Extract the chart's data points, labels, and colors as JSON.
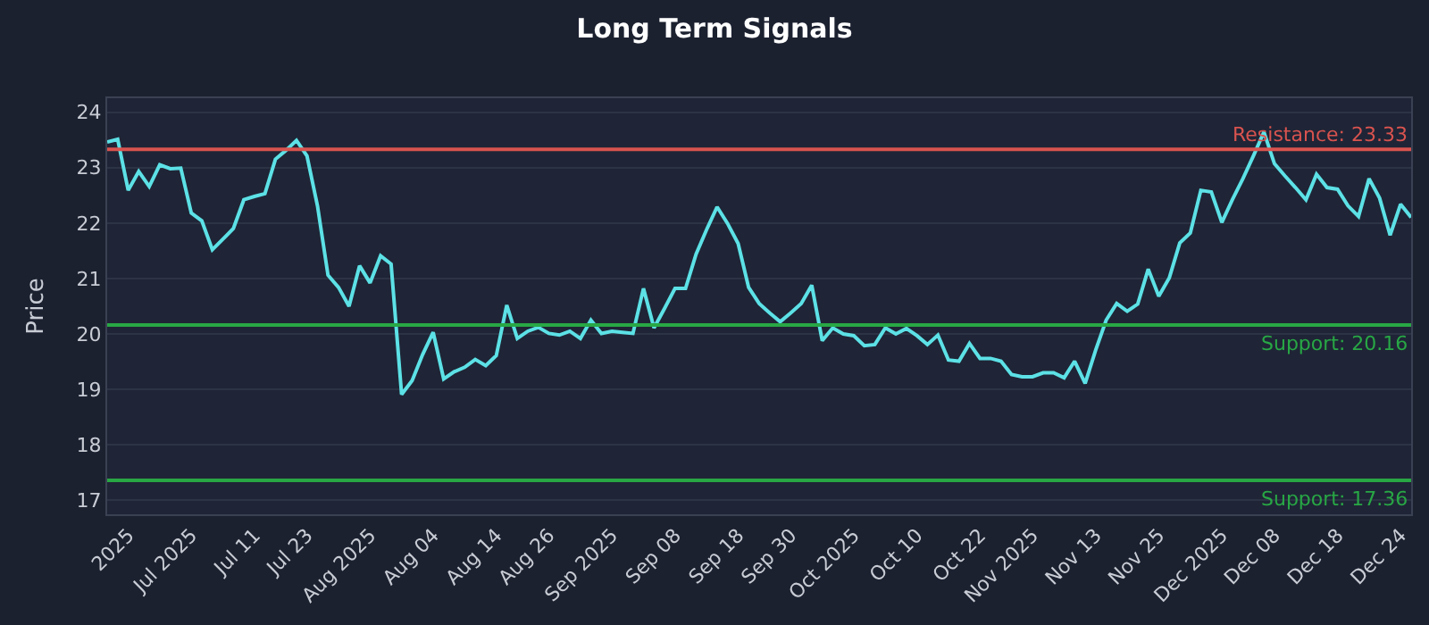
{
  "chart_data": {
    "type": "line",
    "title": "Long Term Signals",
    "ylabel": "Price",
    "categories": [
      null,
      null,
      "2025",
      null,
      null,
      null,
      null,
      null,
      "Jul 2025",
      null,
      null,
      null,
      null,
      null,
      "Jul 11",
      null,
      null,
      null,
      null,
      "Jul 23",
      null,
      null,
      null,
      null,
      null,
      "Aug 2025",
      null,
      null,
      null,
      null,
      null,
      "Aug 04",
      null,
      null,
      null,
      null,
      null,
      "Aug 14",
      null,
      null,
      null,
      null,
      "Aug 26",
      null,
      null,
      null,
      null,
      null,
      "Sep 2025",
      null,
      null,
      null,
      null,
      null,
      "Sep 08",
      null,
      null,
      null,
      null,
      null,
      "Sep 18",
      null,
      null,
      null,
      null,
      "Sep 30",
      null,
      null,
      null,
      null,
      null,
      "Oct 2025",
      null,
      null,
      null,
      null,
      null,
      "Oct 10",
      null,
      null,
      null,
      null,
      null,
      "Oct 22",
      null,
      null,
      null,
      null,
      "Nov 2025",
      null,
      null,
      null,
      null,
      null,
      "Nov 13",
      null,
      null,
      null,
      null,
      null,
      "Nov 25",
      null,
      null,
      null,
      null,
      null,
      "Dec 2025",
      null,
      null,
      null,
      null,
      "Dec 08",
      null,
      null,
      null,
      null,
      null,
      "Dec 18",
      null,
      null,
      null,
      null,
      null,
      "Dec 24",
      null
    ],
    "series": [
      {
        "color": "#5ce1e6",
        "values": [
          23.46,
          23.51,
          22.59,
          22.93,
          22.66,
          23.05,
          22.98,
          22.99,
          22.18,
          22.04,
          21.52,
          21.71,
          21.9,
          22.42,
          22.48,
          22.53,
          23.15,
          23.31,
          23.49,
          23.21,
          22.31,
          21.06,
          20.84,
          20.5,
          21.23,
          20.92,
          21.41,
          21.26,
          18.91,
          19.16,
          19.63,
          20.03,
          19.19,
          19.32,
          19.4,
          19.54,
          19.43,
          19.61,
          20.52,
          19.92,
          20.05,
          20.12,
          20.01,
          19.98,
          20.05,
          19.92,
          20.25,
          20.01,
          20.05,
          20.03,
          20.01,
          20.82,
          20.11,
          20.46,
          20.82,
          20.82,
          21.44,
          21.88,
          22.29,
          21.99,
          21.63,
          20.84,
          20.55,
          20.38,
          20.22,
          20.38,
          20.55,
          20.88,
          19.88,
          20.11,
          20.0,
          19.97,
          19.79,
          19.81,
          20.11,
          20.0,
          20.1,
          19.97,
          19.81,
          19.98,
          19.53,
          19.51,
          19.83,
          19.56,
          19.56,
          19.51,
          19.27,
          19.23,
          19.23,
          19.3,
          19.3,
          19.21,
          19.51,
          19.11,
          19.71,
          20.25,
          20.55,
          20.41,
          20.54,
          21.17,
          20.68,
          21.01,
          21.64,
          21.82,
          22.59,
          22.56,
          22.01,
          22.42,
          22.8,
          23.21,
          23.64,
          23.07,
          22.85,
          22.64,
          22.42,
          22.88,
          22.64,
          22.61,
          22.31,
          22.12,
          22.8,
          22.45,
          21.78,
          22.34,
          22.1
        ]
      }
    ],
    "ylim": [
      16.75,
      24.25
    ],
    "yticks": [
      17,
      18,
      19,
      20,
      21,
      22,
      23,
      24
    ],
    "grid": "y",
    "ref_lines": [
      {
        "axis": "y",
        "value": 23.33,
        "label": "Resistance: 23.33",
        "color": "#d9534f"
      },
      {
        "axis": "y",
        "value": 20.16,
        "label": "Support: 20.16",
        "color": "#28a745"
      },
      {
        "axis": "y",
        "value": 17.36,
        "label": "Support: 17.36",
        "color": "#28a745"
      }
    ]
  }
}
